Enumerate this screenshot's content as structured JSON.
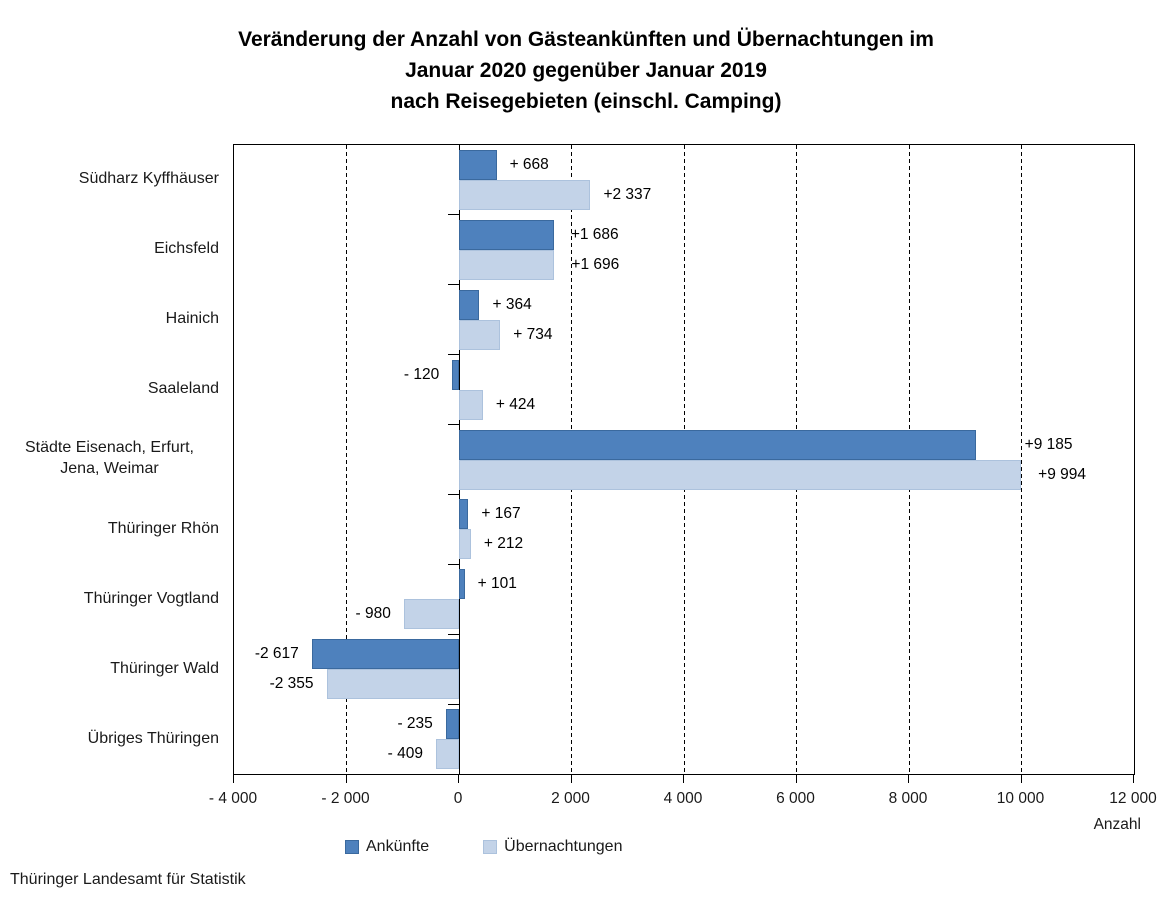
{
  "title": {
    "line1": "Veränderung der Anzahl von Gästeankünften und Übernachtungen im",
    "line2": "Januar 2020 gegenüber Januar 2019",
    "line3": "nach Reisegebieten (einschl. Camping)"
  },
  "axis": {
    "unit_label": "Anzahl"
  },
  "legend": {
    "items": [
      {
        "label": "Ankünfte",
        "color": "#4E81BD",
        "border_color": "#3A699E"
      },
      {
        "label": "Übernachtungen",
        "color": "#C3D3E8",
        "border_color": "#ACC2DD"
      }
    ]
  },
  "footer": {
    "source": "Thüringer Landesamt für Statistik"
  },
  "chart_data": {
    "type": "bar",
    "orientation": "horizontal",
    "title": "Veränderung der Anzahl von Gästeankünften und Übernachtungen im Januar 2020 gegenüber Januar 2019 nach Reisegebieten (einschl. Camping)",
    "xlabel": "Anzahl",
    "xlim": [
      -4000,
      12000
    ],
    "grid": "dashed-vertical-every-2000",
    "legend_position": "bottom",
    "x_ticks": [
      {
        "value": -4000,
        "label": "- 4 000"
      },
      {
        "value": -2000,
        "label": "- 2 000"
      },
      {
        "value": 0,
        "label": "0"
      },
      {
        "value": 2000,
        "label": "2 000"
      },
      {
        "value": 4000,
        "label": "4 000"
      },
      {
        "value": 6000,
        "label": "6 000"
      },
      {
        "value": 8000,
        "label": "8 000"
      },
      {
        "value": 10000,
        "label": "10 000"
      },
      {
        "value": 12000,
        "label": "12 000"
      }
    ],
    "categories": [
      "Südharz Kyffhäuser",
      "Eichsfeld",
      "Hainich",
      "Saaleland",
      "Städte Eisenach, Erfurt,\nJena, Weimar",
      "Thüringer Rhön",
      "Thüringer Vogtland",
      "Thüringer Wald",
      "Übriges Thüringen"
    ],
    "series": [
      {
        "name": "Ankünfte",
        "color": "#4E81BD",
        "border_color": "#3A699E",
        "values": [
          668,
          1686,
          364,
          -120,
          9185,
          167,
          101,
          -2617,
          -235
        ],
        "labels": [
          "+ 668",
          "+1 686",
          "+ 364",
          "- 120",
          "+9 185",
          "+ 167",
          "+ 101",
          "-2 617",
          "- 235"
        ],
        "label_dx": [
          0,
          4,
          0,
          0,
          36,
          0,
          0,
          0,
          0
        ]
      },
      {
        "name": "Übernachtungen",
        "color": "#C3D3E8",
        "border_color": "#ACC2DD",
        "values": [
          2337,
          1696,
          734,
          424,
          9994,
          212,
          -980,
          -2355,
          -409
        ],
        "labels": [
          "+2 337",
          "+1 696",
          "+ 734",
          "+ 424",
          "+9 994",
          "+ 212",
          "- 980",
          "-2 355",
          "- 409"
        ],
        "label_dx": [
          0,
          4,
          0,
          0,
          4,
          0,
          0,
          0,
          0
        ]
      }
    ]
  }
}
